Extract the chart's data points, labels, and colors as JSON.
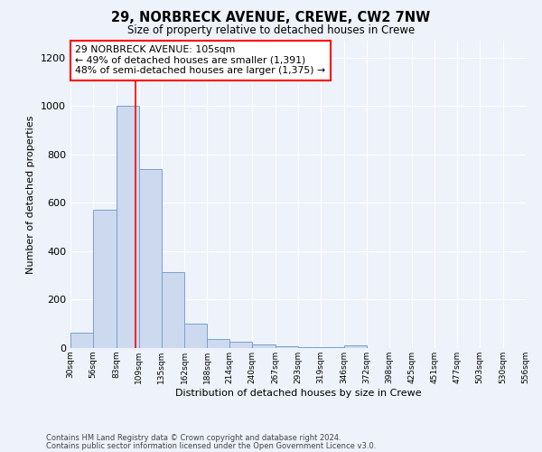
{
  "title": "29, NORBRECK AVENUE, CREWE, CW2 7NW",
  "subtitle": "Size of property relative to detached houses in Crewe",
  "xlabel": "Distribution of detached houses by size in Crewe",
  "ylabel": "Number of detached properties",
  "bar_color": "#ccd9ee",
  "bar_edge_color": "#7aa0cc",
  "bg_color": "#eef2fa",
  "grid_color": "#ffffff",
  "annotation_box_text": "29 NORBRECK AVENUE: 105sqm\n← 49% of detached houses are smaller (1,391)\n48% of semi-detached houses are larger (1,375) →",
  "bins": [
    30,
    56,
    83,
    109,
    135,
    162,
    188,
    214,
    240,
    267,
    293,
    319,
    346,
    372,
    398,
    425,
    451,
    477,
    503,
    530,
    556
  ],
  "values": [
    65,
    570,
    1000,
    740,
    315,
    100,
    38,
    25,
    15,
    8,
    5,
    5,
    10,
    0,
    0,
    0,
    0,
    0,
    0,
    0
  ],
  "ylim": [
    0,
    1270
  ],
  "yticks": [
    0,
    200,
    400,
    600,
    800,
    1000,
    1200
  ],
  "footer_line1": "Contains HM Land Registry data © Crown copyright and database right 2024.",
  "footer_line2": "Contains public sector information licensed under the Open Government Licence v3.0.",
  "property_size": 105
}
